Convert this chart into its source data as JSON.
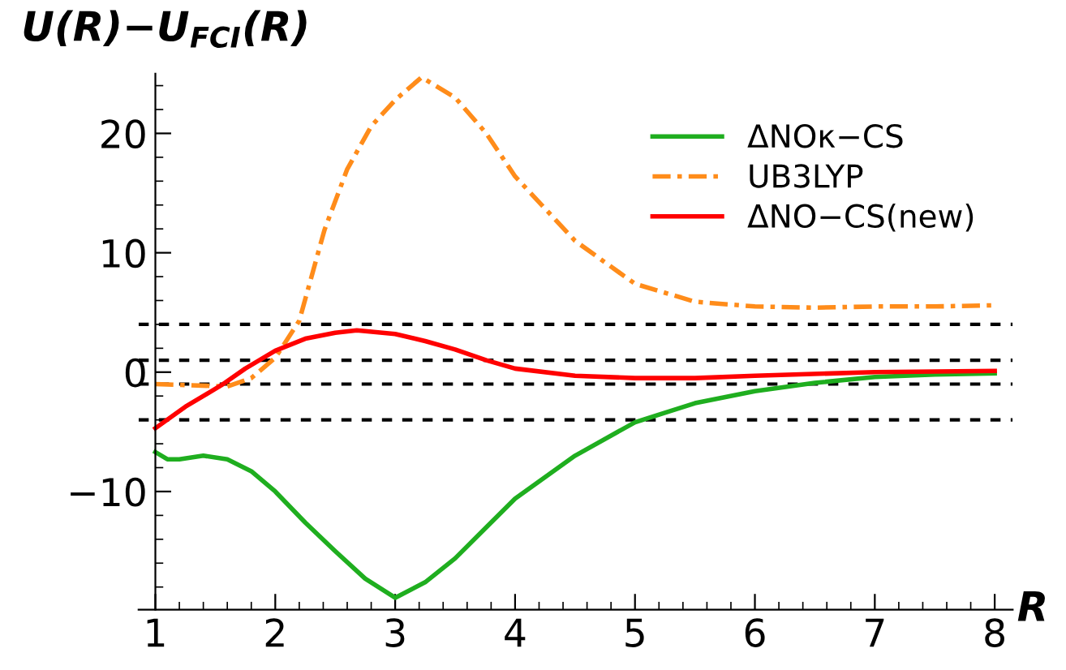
{
  "chart_data": {
    "type": "line",
    "ylabel": "U(R)−U$_{FCI}$(R)",
    "xlabel": "R",
    "xlim": [
      0.86,
      8.15
    ],
    "ylim": [
      -19.9,
      25
    ],
    "xticks": [
      1,
      2,
      3,
      4,
      5,
      6,
      7,
      8
    ],
    "yticks": [
      -10,
      0,
      10,
      20
    ],
    "grid": false,
    "legend": "top right",
    "marker": "none",
    "series": [
      {
        "name": "ΔNOκ−CS",
        "color": "#1fae1f",
        "line_style": "solid",
        "x": [
          1.0,
          1.1,
          1.2,
          1.4,
          1.6,
          1.8,
          2.0,
          2.25,
          2.5,
          2.75,
          3.0,
          3.25,
          3.5,
          3.75,
          4.0,
          4.5,
          5.0,
          5.5,
          6.0,
          6.5,
          7.0,
          7.5,
          8.0
        ],
        "values": [
          -6.7,
          -7.3,
          -7.3,
          -7.0,
          -7.3,
          -8.3,
          -10.0,
          -12.6,
          -15.0,
          -17.3,
          -18.9,
          -17.6,
          -15.6,
          -13.1,
          -10.6,
          -7.0,
          -4.2,
          -2.6,
          -1.6,
          -0.9,
          -0.4,
          -0.2,
          -0.1
        ]
      },
      {
        "name": "UB3LYP",
        "color": "#ff8c1a",
        "line_style": "dashdot",
        "x": [
          1.0,
          1.3,
          1.6,
          1.8,
          2.0,
          2.2,
          2.41,
          2.6,
          2.8,
          3.0,
          3.22,
          3.5,
          3.76,
          4.0,
          4.5,
          5.0,
          5.5,
          6.0,
          6.5,
          7.0,
          7.5,
          8.0
        ],
        "values": [
          -1.0,
          -1.1,
          -1.2,
          -0.5,
          1.2,
          4.3,
          11.9,
          17.0,
          20.6,
          22.8,
          24.7,
          23.0,
          20.0,
          16.4,
          11.0,
          7.4,
          5.9,
          5.5,
          5.4,
          5.5,
          5.5,
          5.6
        ]
      },
      {
        "name": "ΔNO−CS(new)",
        "color": "#ff0000",
        "line_style": "solid",
        "x": [
          1.0,
          1.25,
          1.55,
          1.75,
          2.0,
          2.25,
          2.5,
          2.68,
          3.0,
          3.25,
          3.5,
          3.76,
          4.0,
          4.5,
          5.0,
          5.5,
          6.0,
          7.0,
          8.0
        ],
        "values": [
          -4.7,
          -2.9,
          -1.1,
          0.3,
          1.8,
          2.8,
          3.3,
          3.5,
          3.2,
          2.6,
          1.9,
          1.0,
          0.3,
          -0.3,
          -0.5,
          -0.5,
          -0.3,
          0.0,
          0.1
        ]
      }
    ],
    "ref_lines": [
      {
        "axis": "y",
        "value": 4,
        "color": "#000000",
        "line_style": "dashed"
      },
      {
        "axis": "y",
        "value": 1,
        "color": "#000000",
        "line_style": "dashed"
      },
      {
        "axis": "y",
        "value": -1,
        "color": "#000000",
        "line_style": "dashed"
      },
      {
        "axis": "y",
        "value": -4,
        "color": "#000000",
        "line_style": "dashed"
      }
    ]
  }
}
